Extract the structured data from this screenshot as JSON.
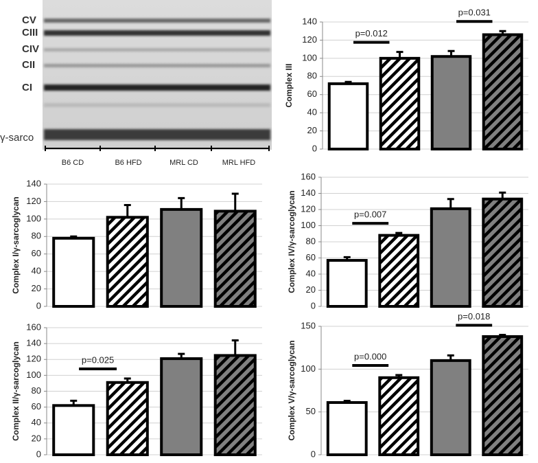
{
  "blot": {
    "bands": [
      "CV",
      "CIII",
      "CIV",
      "CII",
      "CI",
      "γ-sarco"
    ],
    "groups": [
      "B6 CD",
      "B6 HFD",
      "MRL CD",
      "MRL HFD"
    ]
  },
  "chart_data": [
    {
      "type": "bar",
      "y_label": "Complex III",
      "values": [
        72,
        100,
        102,
        126
      ],
      "errors": [
        2,
        7,
        6,
        4
      ],
      "colors": [
        "#ffffff",
        "#ffffff",
        "#808080",
        "#808080"
      ],
      "hatched": [
        false,
        true,
        false,
        true
      ],
      "ylim": [
        0,
        140
      ],
      "yticks": [
        0,
        20,
        40,
        60,
        80,
        100,
        120,
        140
      ],
      "grid": true,
      "annotations": [
        {
          "text": "p=0.012",
          "bars": [
            0,
            1
          ]
        },
        {
          "text": "p=0.031",
          "bars": [
            2,
            3
          ]
        }
      ]
    },
    {
      "type": "bar",
      "y_label": "Complex I/γ-sarcoglycan",
      "values": [
        78,
        102,
        111,
        109
      ],
      "errors": [
        2,
        14,
        13,
        20
      ],
      "colors": [
        "#ffffff",
        "#ffffff",
        "#808080",
        "#808080"
      ],
      "hatched": [
        false,
        true,
        false,
        true
      ],
      "ylim": [
        0,
        140
      ],
      "yticks": [
        0,
        20,
        40,
        60,
        80,
        100,
        120,
        140
      ],
      "grid": true,
      "annotations": []
    },
    {
      "type": "bar",
      "y_label": "Complex IV/γ-sarcoglycan",
      "values": [
        57,
        88,
        121,
        133
      ],
      "errors": [
        4,
        3,
        12,
        8
      ],
      "colors": [
        "#ffffff",
        "#ffffff",
        "#808080",
        "#808080"
      ],
      "hatched": [
        false,
        true,
        false,
        true
      ],
      "ylim": [
        0,
        160
      ],
      "yticks": [
        0,
        20,
        40,
        60,
        80,
        100,
        120,
        140,
        160
      ],
      "grid": true,
      "annotations": [
        {
          "text": "p=0.007",
          "bars": [
            0,
            1
          ]
        }
      ]
    },
    {
      "type": "bar",
      "y_label": "Complex II/γ-sarcoglycan",
      "values": [
        62,
        91,
        121,
        125
      ],
      "errors": [
        6,
        5,
        6,
        19
      ],
      "colors": [
        "#ffffff",
        "#ffffff",
        "#808080",
        "#808080"
      ],
      "hatched": [
        false,
        true,
        false,
        true
      ],
      "ylim": [
        0,
        160
      ],
      "yticks": [
        0,
        20,
        40,
        60,
        80,
        100,
        120,
        140,
        160
      ],
      "grid": true,
      "annotations": [
        {
          "text": "p=0.025",
          "bars": [
            0,
            1
          ]
        }
      ]
    },
    {
      "type": "bar",
      "y_label": "Complex V/γ-sarcoglycan",
      "values": [
        61,
        90,
        110,
        138
      ],
      "errors": [
        2,
        3,
        6,
        2
      ],
      "colors": [
        "#ffffff",
        "#ffffff",
        "#808080",
        "#808080"
      ],
      "hatched": [
        false,
        true,
        false,
        true
      ],
      "ylim": [
        0,
        150
      ],
      "yticks": [
        0,
        50,
        100,
        150
      ],
      "grid": true,
      "annotations": [
        {
          "text": "p=0.000",
          "bars": [
            0,
            1
          ]
        },
        {
          "text": "p=0.018",
          "bars": [
            2,
            3
          ]
        }
      ]
    }
  ]
}
